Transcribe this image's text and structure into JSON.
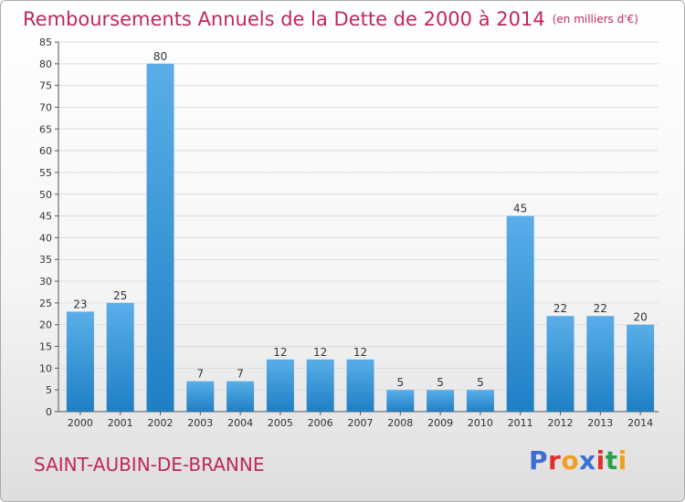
{
  "header": {
    "title": "Remboursements Annuels de la Dette de 2000 à 2014",
    "unit": "(en milliers d'€)"
  },
  "footer": {
    "commune": "SAINT-AUBIN-DE-BRANNE",
    "brand": "Proxiti",
    "brand_colors": [
      "#3b6fd0",
      "#e0312e",
      "#f0a020",
      "#3b6fd0",
      "#e0312e",
      "#2aa04a",
      "#f0a020"
    ]
  },
  "colors": {
    "title": "#c0285a",
    "bar_light": "#5aaee8",
    "bar_dark": "#1f7fc4",
    "grid": "#dddddd"
  },
  "chart_data": {
    "type": "bar",
    "categories": [
      "2000",
      "2001",
      "2002",
      "2003",
      "2004",
      "2005",
      "2006",
      "2007",
      "2008",
      "2009",
      "2010",
      "2011",
      "2012",
      "2013",
      "2014"
    ],
    "values": [
      23,
      25,
      80,
      7,
      7,
      12,
      12,
      12,
      5,
      5,
      5,
      45,
      22,
      22,
      20
    ],
    "ylim": [
      0,
      85
    ],
    "yticks": [
      0,
      5,
      10,
      15,
      20,
      25,
      30,
      35,
      40,
      45,
      50,
      55,
      60,
      65,
      70,
      75,
      80,
      85
    ],
    "grid": true,
    "data_labels": true
  }
}
